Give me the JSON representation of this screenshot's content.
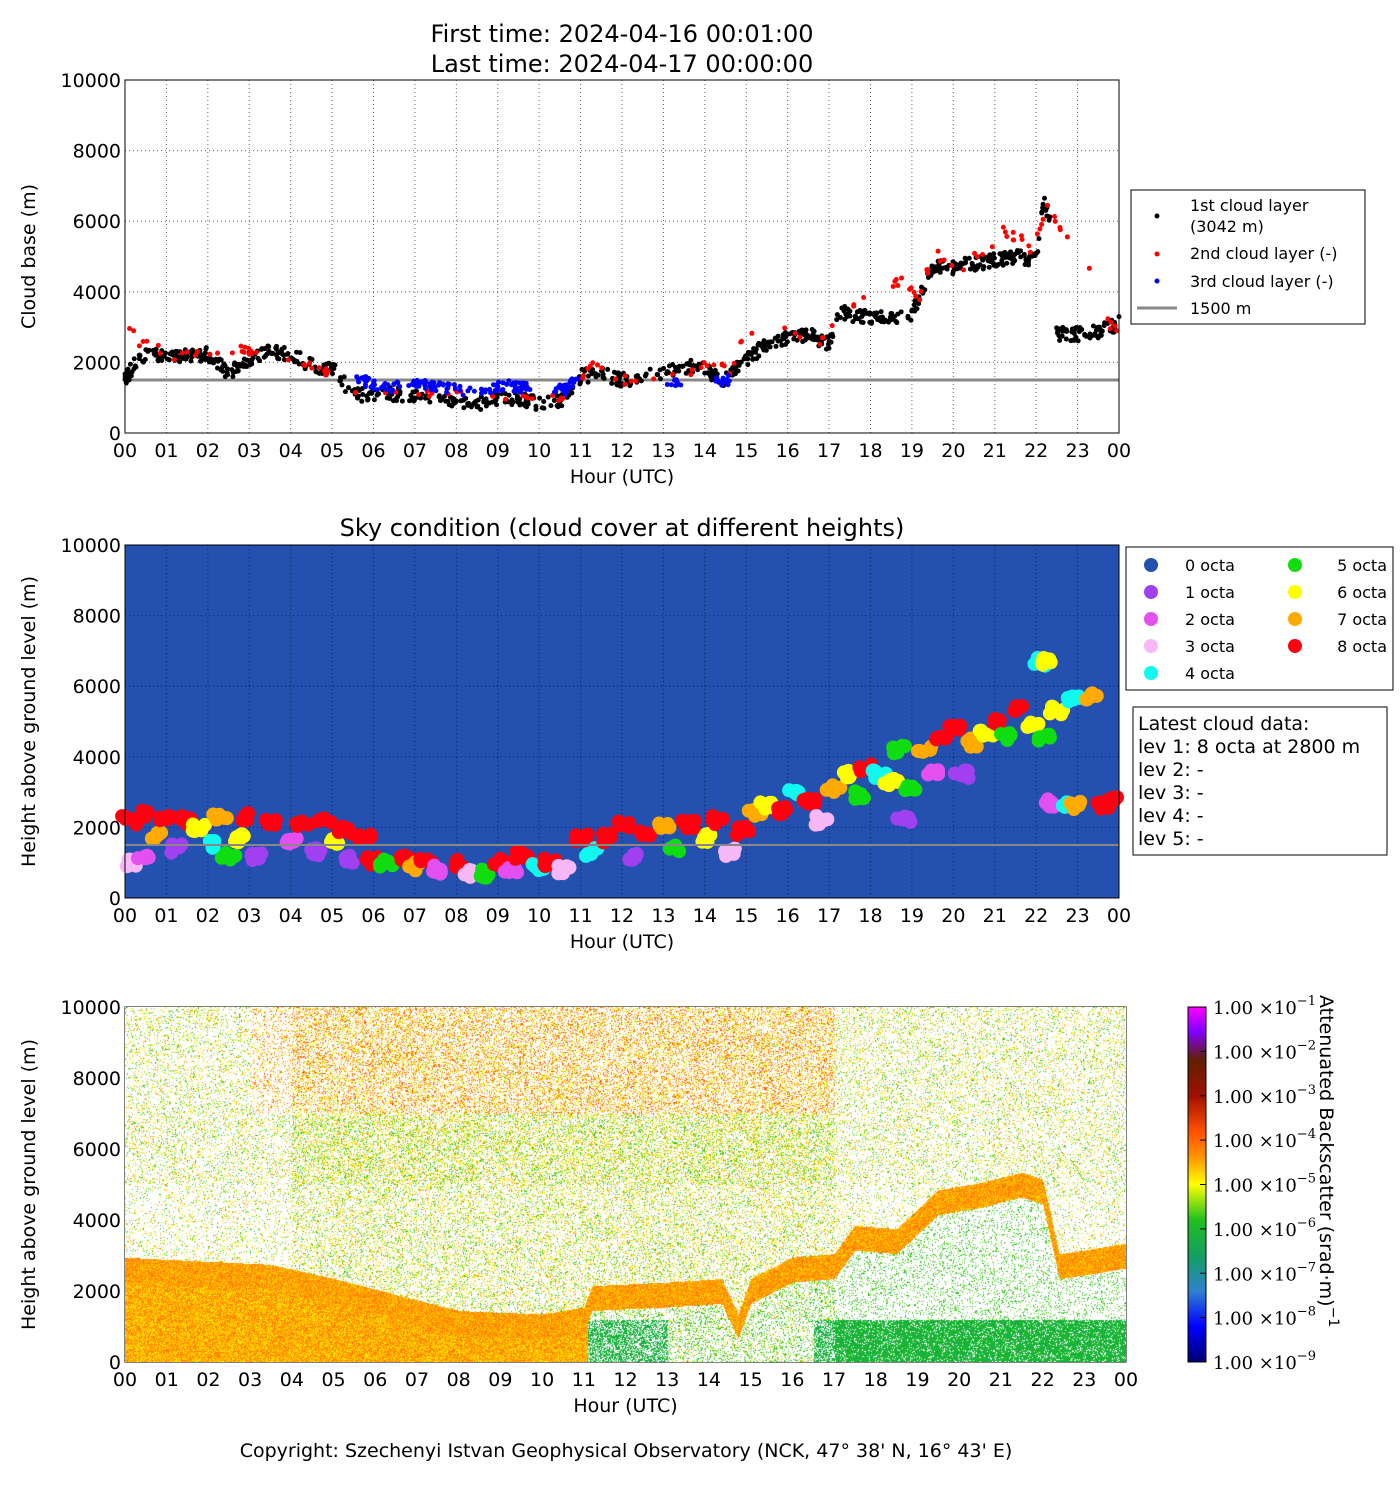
{
  "header": {
    "first_time": "First time: 2024-04-16 00:01:00",
    "last_time": "Last time: 2024-04-17 00:00:00"
  },
  "footer": {
    "copyright": "Copyright: Szechenyi Istvan Geophysical Observatory (NCK, 47° 38' N, 16° 43' E)"
  },
  "chart_data": [
    {
      "type": "scatter",
      "id": "cloud-base",
      "title": "",
      "xlabel": "Hour (UTC)",
      "ylabel": "Cloud base (m)",
      "xlim": [
        0,
        24
      ],
      "ylim": [
        0,
        10000
      ],
      "grid": true,
      "xticks": [
        "00",
        "01",
        "02",
        "03",
        "04",
        "05",
        "06",
        "07",
        "08",
        "09",
        "10",
        "11",
        "12",
        "13",
        "14",
        "15",
        "16",
        "17",
        "18",
        "19",
        "20",
        "21",
        "22",
        "23",
        "00"
      ],
      "yticks": [
        "0",
        "2000",
        "4000",
        "6000",
        "8000",
        "10000"
      ],
      "legend": {
        "placement": "right",
        "entries": [
          "1st cloud layer",
          "(3042 m)",
          "2nd cloud layer (-)",
          "3rd cloud layer (-)",
          "1500 m"
        ]
      },
      "reference_line": 1500,
      "series": [
        {
          "name": "1st cloud layer",
          "color": "#000000",
          "points": [
            [
              0,
              1500
            ],
            [
              0.25,
              2000
            ],
            [
              0.5,
              2200
            ],
            [
              1,
              2200
            ],
            [
              1.5,
              2200
            ],
            [
              2,
              2250
            ],
            [
              2.5,
              1700
            ],
            [
              3,
              2100
            ],
            [
              3.5,
              2300
            ],
            [
              4,
              2250
            ],
            [
              4.5,
              1900
            ],
            [
              5,
              1850
            ],
            [
              5.5,
              1100
            ],
            [
              6,
              1050
            ],
            [
              6.5,
              1100
            ],
            [
              7,
              1100
            ],
            [
              7.5,
              1050
            ],
            [
              8,
              850
            ],
            [
              8.5,
              800
            ],
            [
              9,
              1000
            ],
            [
              9.5,
              1000
            ],
            [
              10,
              800
            ],
            [
              10.5,
              900
            ],
            [
              11,
              1600
            ],
            [
              11.5,
              1700
            ],
            [
              12,
              1500
            ],
            [
              12.5,
              1600
            ],
            [
              13,
              1700
            ],
            [
              13.5,
              1900
            ],
            [
              14,
              1800
            ],
            [
              14.5,
              1500
            ],
            [
              15,
              2100
            ],
            [
              15.5,
              2500
            ],
            [
              16,
              2700
            ],
            [
              16.5,
              2800
            ],
            [
              17,
              2500
            ],
            [
              17.3,
              3500
            ],
            [
              17.5,
              3300
            ],
            [
              18,
              3300
            ],
            [
              18.5,
              3200
            ],
            [
              19,
              3400
            ],
            [
              19.5,
              4700
            ],
            [
              20,
              4700
            ],
            [
              20.5,
              4800
            ],
            [
              21,
              4900
            ],
            [
              21.5,
              5000
            ],
            [
              22,
              4900
            ],
            [
              22.2,
              6700
            ],
            [
              22.4,
              5500
            ],
            [
              22.5,
              2800
            ],
            [
              23,
              2800
            ],
            [
              23.5,
              2850
            ],
            [
              24,
              3100
            ]
          ]
        },
        {
          "name": "2nd cloud layer",
          "color": "#ff0000",
          "points": [
            [
              0.3,
              2400
            ],
            [
              0.6,
              2500
            ],
            [
              1.2,
              2200
            ],
            [
              2,
              2300
            ],
            [
              2.8,
              2400
            ],
            [
              3.1,
              2200
            ],
            [
              4.2,
              2100
            ],
            [
              4.7,
              1900
            ],
            [
              5.7,
              1100
            ],
            [
              6.5,
              1100
            ],
            [
              7.2,
              1100
            ],
            [
              8,
              1100
            ],
            [
              9,
              1100
            ],
            [
              9.8,
              1000
            ],
            [
              10.5,
              1000
            ],
            [
              11.3,
              2000
            ],
            [
              12,
              1500
            ],
            [
              12.6,
              1700
            ],
            [
              13.5,
              1600
            ],
            [
              14.2,
              2000
            ],
            [
              14.6,
              1700
            ],
            [
              15,
              2800
            ],
            [
              16.2,
              2900
            ],
            [
              16.8,
              2600
            ],
            [
              17.8,
              3800
            ],
            [
              18.3,
              4200
            ],
            [
              18.8,
              4300
            ],
            [
              19.2,
              3900
            ],
            [
              19.5,
              5100
            ],
            [
              20.2,
              4700
            ],
            [
              20.8,
              5200
            ],
            [
              21.2,
              5700
            ],
            [
              21.6,
              5500
            ],
            [
              21.9,
              5200
            ],
            [
              22.3,
              6600
            ],
            [
              22.5,
              5800
            ],
            [
              23,
              5600
            ],
            [
              23.8,
              3000
            ]
          ]
        },
        {
          "name": "3rd cloud layer",
          "color": "#0000ff",
          "points": [
            [
              5.6,
              1500
            ],
            [
              6,
              1400
            ],
            [
              6.4,
              1300
            ],
            [
              6.9,
              1350
            ],
            [
              7.2,
              1400
            ],
            [
              7.6,
              1300
            ],
            [
              8.2,
              1200
            ],
            [
              8.8,
              1250
            ],
            [
              9.2,
              1350
            ],
            [
              9.6,
              1300
            ],
            [
              10.6,
              1200
            ],
            [
              10.8,
              1400
            ],
            [
              13.2,
              1400
            ],
            [
              14.5,
              1500
            ]
          ]
        }
      ]
    },
    {
      "type": "scatter",
      "id": "sky-condition",
      "title": "Sky condition (cloud cover at different heights)",
      "xlabel": "Hour (UTC)",
      "ylabel": "Height above ground level (m)",
      "xlim": [
        0,
        24
      ],
      "ylim": [
        0,
        10000
      ],
      "grid": true,
      "xticks": [
        "00",
        "01",
        "02",
        "03",
        "04",
        "05",
        "06",
        "07",
        "08",
        "09",
        "10",
        "11",
        "12",
        "13",
        "14",
        "15",
        "16",
        "17",
        "18",
        "19",
        "20",
        "21",
        "22",
        "23",
        "00"
      ],
      "yticks": [
        "0",
        "2000",
        "4000",
        "6000",
        "8000",
        "10000"
      ],
      "legend": {
        "placement": "right",
        "entries": [
          {
            "label": "0 octa",
            "color": "#2451b0"
          },
          {
            "label": "1 octa",
            "color": "#a040f0"
          },
          {
            "label": "2 octa",
            "color": "#e44ff0"
          },
          {
            "label": "3 octa",
            "color": "#f8b8f8"
          },
          {
            "label": "4 octa",
            "color": "#10f8f0"
          },
          {
            "label": "5 octa",
            "color": "#10dd10"
          },
          {
            "label": "6 octa",
            "color": "#ffff00"
          },
          {
            "label": "7 octa",
            "color": "#ffaa00"
          },
          {
            "label": "8 octa",
            "color": "#ff0010"
          }
        ]
      },
      "reference_line": 1500,
      "info_box": {
        "title": "Latest cloud data:",
        "lines": [
          "lev 1: 8 octa at 2800 m",
          "lev 2: -",
          "lev 3: -",
          "lev 4: -",
          "lev 5: -"
        ]
      },
      "points": [
        [
          0.1,
          2200,
          8
        ],
        [
          0.2,
          1000,
          3
        ],
        [
          0.4,
          1200,
          2
        ],
        [
          0.5,
          2400,
          8
        ],
        [
          0.7,
          1800,
          7
        ],
        [
          1,
          2300,
          8
        ],
        [
          1.2,
          1400,
          1
        ],
        [
          1.5,
          2200,
          8
        ],
        [
          1.8,
          2000,
          6
        ],
        [
          2,
          1500,
          4
        ],
        [
          2.3,
          2300,
          7
        ],
        [
          2.5,
          1200,
          5
        ],
        [
          2.7,
          1700,
          6
        ],
        [
          3,
          2300,
          8
        ],
        [
          3.2,
          1200,
          1
        ],
        [
          3.5,
          2100,
          8
        ],
        [
          4,
          1600,
          2
        ],
        [
          4.3,
          2100,
          8
        ],
        [
          4.6,
          1300,
          1
        ],
        [
          4.8,
          2200,
          8
        ],
        [
          5,
          1600,
          6
        ],
        [
          5.3,
          1900,
          8
        ],
        [
          5.5,
          1100,
          1
        ],
        [
          5.8,
          1800,
          8
        ],
        [
          6,
          1050,
          8
        ],
        [
          6.3,
          1000,
          5
        ],
        [
          6.7,
          1100,
          8
        ],
        [
          7,
          900,
          7
        ],
        [
          7.3,
          1000,
          8
        ],
        [
          7.6,
          800,
          2
        ],
        [
          8,
          1000,
          8
        ],
        [
          8.3,
          700,
          3
        ],
        [
          8.7,
          700,
          5
        ],
        [
          9,
          1000,
          8
        ],
        [
          9.3,
          800,
          2
        ],
        [
          9.6,
          1200,
          8
        ],
        [
          10,
          900,
          4
        ],
        [
          10.3,
          1000,
          8
        ],
        [
          10.6,
          800,
          3
        ],
        [
          11,
          1700,
          8
        ],
        [
          11.3,
          1300,
          4
        ],
        [
          11.6,
          1700,
          8
        ],
        [
          12,
          2100,
          8
        ],
        [
          12.3,
          1200,
          1
        ],
        [
          12.6,
          1800,
          8
        ],
        [
          13,
          2000,
          7
        ],
        [
          13.3,
          1400,
          5
        ],
        [
          13.6,
          2100,
          8
        ],
        [
          14,
          1700,
          6
        ],
        [
          14.3,
          2200,
          8
        ],
        [
          14.6,
          1300,
          3
        ],
        [
          14.9,
          1900,
          8
        ],
        [
          15.2,
          2400,
          7
        ],
        [
          15.5,
          2600,
          6
        ],
        [
          15.8,
          2500,
          8
        ],
        [
          16.2,
          3000,
          4
        ],
        [
          16.5,
          2700,
          8
        ],
        [
          16.8,
          2200,
          3
        ],
        [
          17.1,
          3100,
          7
        ],
        [
          17.4,
          3500,
          6
        ],
        [
          17.7,
          2900,
          5
        ],
        [
          17.9,
          3700,
          8
        ],
        [
          18.2,
          3500,
          4
        ],
        [
          18.5,
          3300,
          6
        ],
        [
          18.7,
          4200,
          5
        ],
        [
          18.8,
          2200,
          1
        ],
        [
          19,
          3100,
          5
        ],
        [
          19.3,
          4200,
          7
        ],
        [
          19.5,
          3600,
          2
        ],
        [
          19.7,
          4600,
          8
        ],
        [
          20,
          4800,
          8
        ],
        [
          20.2,
          3500,
          1
        ],
        [
          20.5,
          4400,
          7
        ],
        [
          20.8,
          4700,
          6
        ],
        [
          21,
          5000,
          8
        ],
        [
          21.3,
          4600,
          5
        ],
        [
          21.6,
          5400,
          8
        ],
        [
          21.9,
          4900,
          6
        ],
        [
          22.1,
          6700,
          4
        ],
        [
          22.3,
          6700,
          6
        ],
        [
          22.2,
          4500,
          5
        ],
        [
          22.5,
          5300,
          6
        ],
        [
          22.4,
          2700,
          2
        ],
        [
          22.7,
          2700,
          4
        ],
        [
          22.9,
          5600,
          4
        ],
        [
          23,
          2600,
          7
        ],
        [
          23.3,
          5700,
          7
        ],
        [
          23.6,
          2600,
          8
        ],
        [
          23.9,
          2800,
          8
        ]
      ]
    },
    {
      "type": "heatmap",
      "id": "backscatter",
      "title": "",
      "xlabel": "Hour (UTC)",
      "ylabel": "Height above ground level (m)",
      "xlim": [
        0,
        24
      ],
      "ylim": [
        0,
        10000
      ],
      "xticks": [
        "00",
        "01",
        "02",
        "03",
        "04",
        "05",
        "06",
        "07",
        "08",
        "09",
        "10",
        "11",
        "12",
        "13",
        "14",
        "15",
        "16",
        "17",
        "18",
        "19",
        "20",
        "21",
        "22",
        "23",
        "00"
      ],
      "yticks": [
        "0",
        "2000",
        "4000",
        "6000",
        "8000",
        "10000"
      ],
      "colorbar": {
        "label": "Attenuated Backscatter (srad·m)",
        "label_exponent": "−1",
        "scale": "log",
        "range": [
          1e-09,
          0.1
        ],
        "ticks": [
          {
            "mantissa": "1.00 ×10",
            "exp": "−1"
          },
          {
            "mantissa": "1.00 ×10",
            "exp": "−2"
          },
          {
            "mantissa": "1.00 ×10",
            "exp": "−3"
          },
          {
            "mantissa": "1.00 ×10",
            "exp": "−4"
          },
          {
            "mantissa": "1.00 ×10",
            "exp": "−5"
          },
          {
            "mantissa": "1.00 ×10",
            "exp": "−6"
          },
          {
            "mantissa": "1.00 ×10",
            "exp": "−7"
          },
          {
            "mantissa": "1.00 ×10",
            "exp": "−8"
          },
          {
            "mantissa": "1.00 ×10",
            "exp": "−9"
          }
        ]
      },
      "cloud_layer_profile": [
        [
          0,
          2600
        ],
        [
          3.5,
          2400
        ],
        [
          5,
          2000
        ],
        [
          8,
          1100
        ],
        [
          10,
          1000
        ],
        [
          11,
          1200
        ],
        [
          11.2,
          1800
        ],
        [
          13,
          1900
        ],
        [
          14.3,
          2000
        ],
        [
          14.7,
          1000
        ],
        [
          15,
          2000
        ],
        [
          16,
          2600
        ],
        [
          17,
          2700
        ],
        [
          17.5,
          3500
        ],
        [
          18.5,
          3400
        ],
        [
          19.5,
          4500
        ],
        [
          20.5,
          4700
        ],
        [
          21.5,
          5000
        ],
        [
          22,
          4800
        ],
        [
          22.4,
          2700
        ],
        [
          23,
          2800
        ],
        [
          24,
          3000
        ]
      ]
    }
  ]
}
